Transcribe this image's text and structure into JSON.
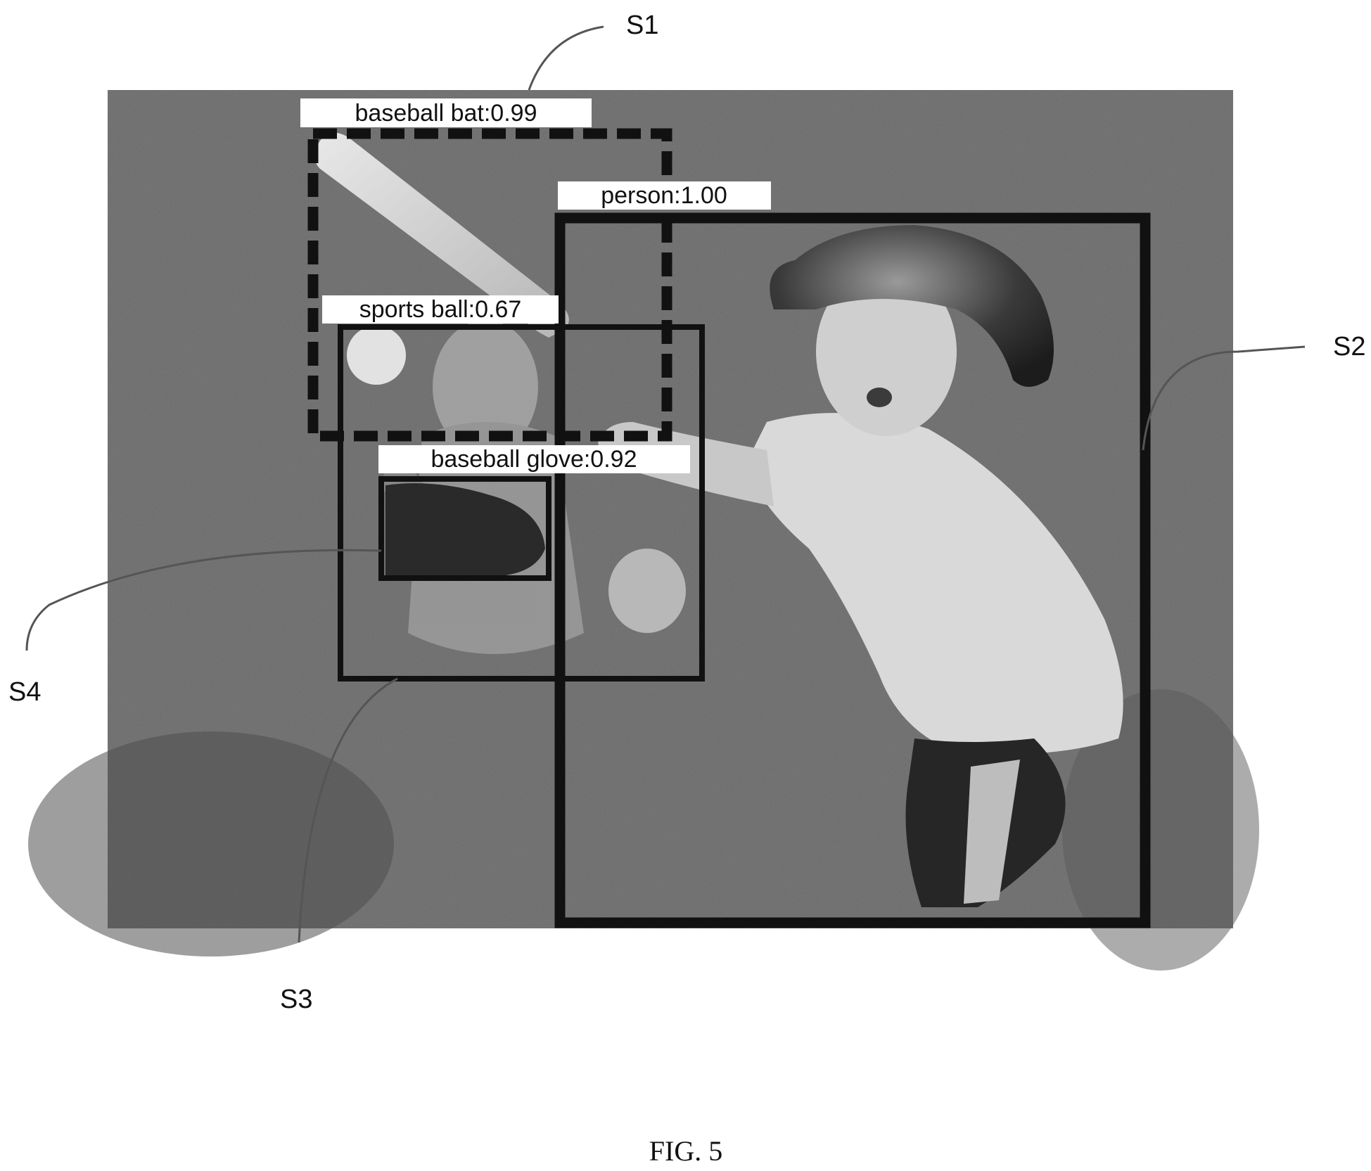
{
  "figure": {
    "caption": "FIG. 5",
    "photo_description_icon": "boy-swinging-baseball-bat-photo",
    "colors": {
      "background": "#ffffff",
      "box_stroke": "#111111",
      "label_fill": "#ffffff",
      "photo_grass": "#6b6b6b"
    }
  },
  "detections": [
    {
      "ref": "S1",
      "label": "baseball bat:0.99",
      "class": "baseball bat",
      "score": 0.99,
      "style": "dashed"
    },
    {
      "ref": "S2",
      "label": "person:1.00",
      "class": "person",
      "score": 1.0,
      "style": "solid-thick"
    },
    {
      "ref": "S3",
      "label": "sports ball:0.67",
      "class": "sports ball",
      "score": 0.67,
      "style": "solid"
    },
    {
      "ref": "S4",
      "label": "baseball glove:0.92",
      "class": "baseball glove",
      "score": 0.92,
      "style": "solid"
    }
  ],
  "reference_labels": {
    "s1": "S1",
    "s2": "S2",
    "s3": "S3",
    "s4": "S4"
  }
}
